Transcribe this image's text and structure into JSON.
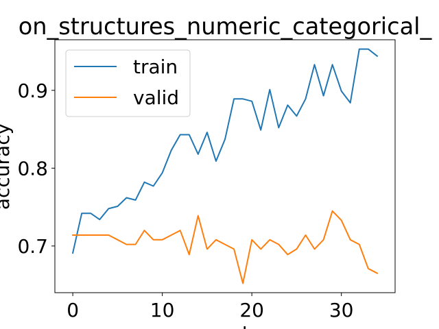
{
  "chart_data": {
    "type": "line",
    "title": "on_structures_numeric_categorical_",
    "xlabel": "epoch",
    "ylabel": "accuracy",
    "xlim": [
      -2,
      36
    ],
    "ylim": [
      0.64,
      0.965
    ],
    "xticks": [
      0,
      10,
      20,
      30
    ],
    "yticks": [
      0.7,
      0.8,
      0.9
    ],
    "grid": false,
    "legend": "top-left",
    "series": [
      {
        "name": "train",
        "color": "#1f77b4",
        "x": [
          0,
          1,
          2,
          3,
          4,
          5,
          6,
          7,
          8,
          9,
          10,
          11,
          12,
          13,
          14,
          15,
          16,
          17,
          18,
          19,
          20,
          21,
          22,
          23,
          24,
          25,
          26,
          27,
          28,
          29,
          30,
          31,
          32,
          33,
          34
        ],
        "y": [
          0.691,
          0.742,
          0.742,
          0.734,
          0.748,
          0.751,
          0.762,
          0.759,
          0.782,
          0.777,
          0.794,
          0.823,
          0.843,
          0.843,
          0.818,
          0.846,
          0.809,
          0.837,
          0.889,
          0.889,
          0.886,
          0.849,
          0.901,
          0.852,
          0.881,
          0.867,
          0.889,
          0.933,
          0.893,
          0.933,
          0.899,
          0.884,
          0.953,
          0.953,
          0.944
        ]
      },
      {
        "name": "valid",
        "color": "#ff7f0e",
        "x": [
          0,
          1,
          2,
          3,
          4,
          5,
          6,
          7,
          8,
          9,
          10,
          11,
          12,
          13,
          14,
          15,
          16,
          17,
          18,
          19,
          20,
          21,
          22,
          23,
          24,
          25,
          26,
          27,
          28,
          29,
          30,
          31,
          32,
          33,
          34
        ],
        "y": [
          0.714,
          0.714,
          0.714,
          0.714,
          0.714,
          0.708,
          0.702,
          0.702,
          0.72,
          0.708,
          0.708,
          0.714,
          0.72,
          0.689,
          0.739,
          0.696,
          0.708,
          0.702,
          0.696,
          0.652,
          0.708,
          0.696,
          0.708,
          0.702,
          0.689,
          0.696,
          0.714,
          0.696,
          0.708,
          0.745,
          0.733,
          0.708,
          0.702,
          0.671,
          0.665
        ]
      }
    ]
  }
}
